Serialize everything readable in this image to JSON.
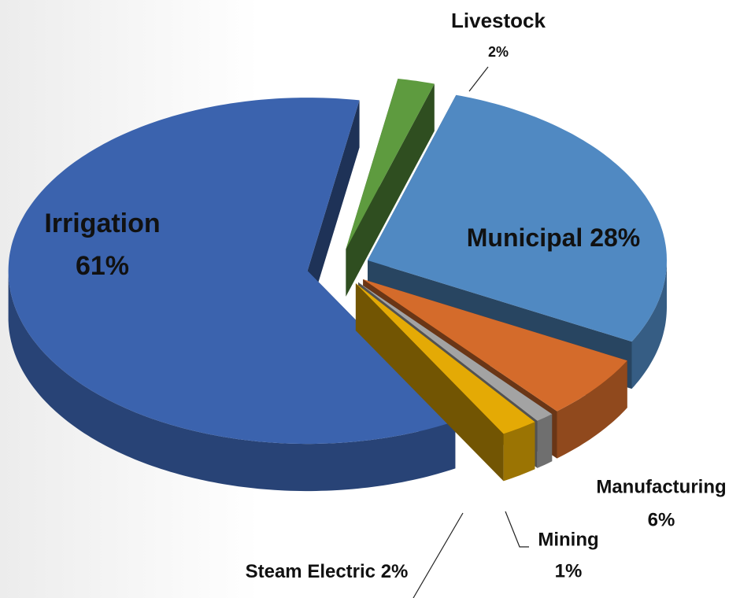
{
  "chart_data": {
    "type": "pie3d",
    "categories": [
      "Livestock",
      "Municipal",
      "Manufacturing",
      "Mining",
      "Steam Electric",
      "Irrigation"
    ],
    "values": [
      2,
      28,
      6,
      1,
      2,
      61
    ],
    "value_labels": [
      "2%",
      "28%",
      "6%",
      "1%",
      "2%",
      "61%"
    ],
    "colors": [
      "#5e9b3f",
      "#5089c2",
      "#d46b2b",
      "#a3a3a3",
      "#e4aa05",
      "#3b63ae"
    ]
  }
}
